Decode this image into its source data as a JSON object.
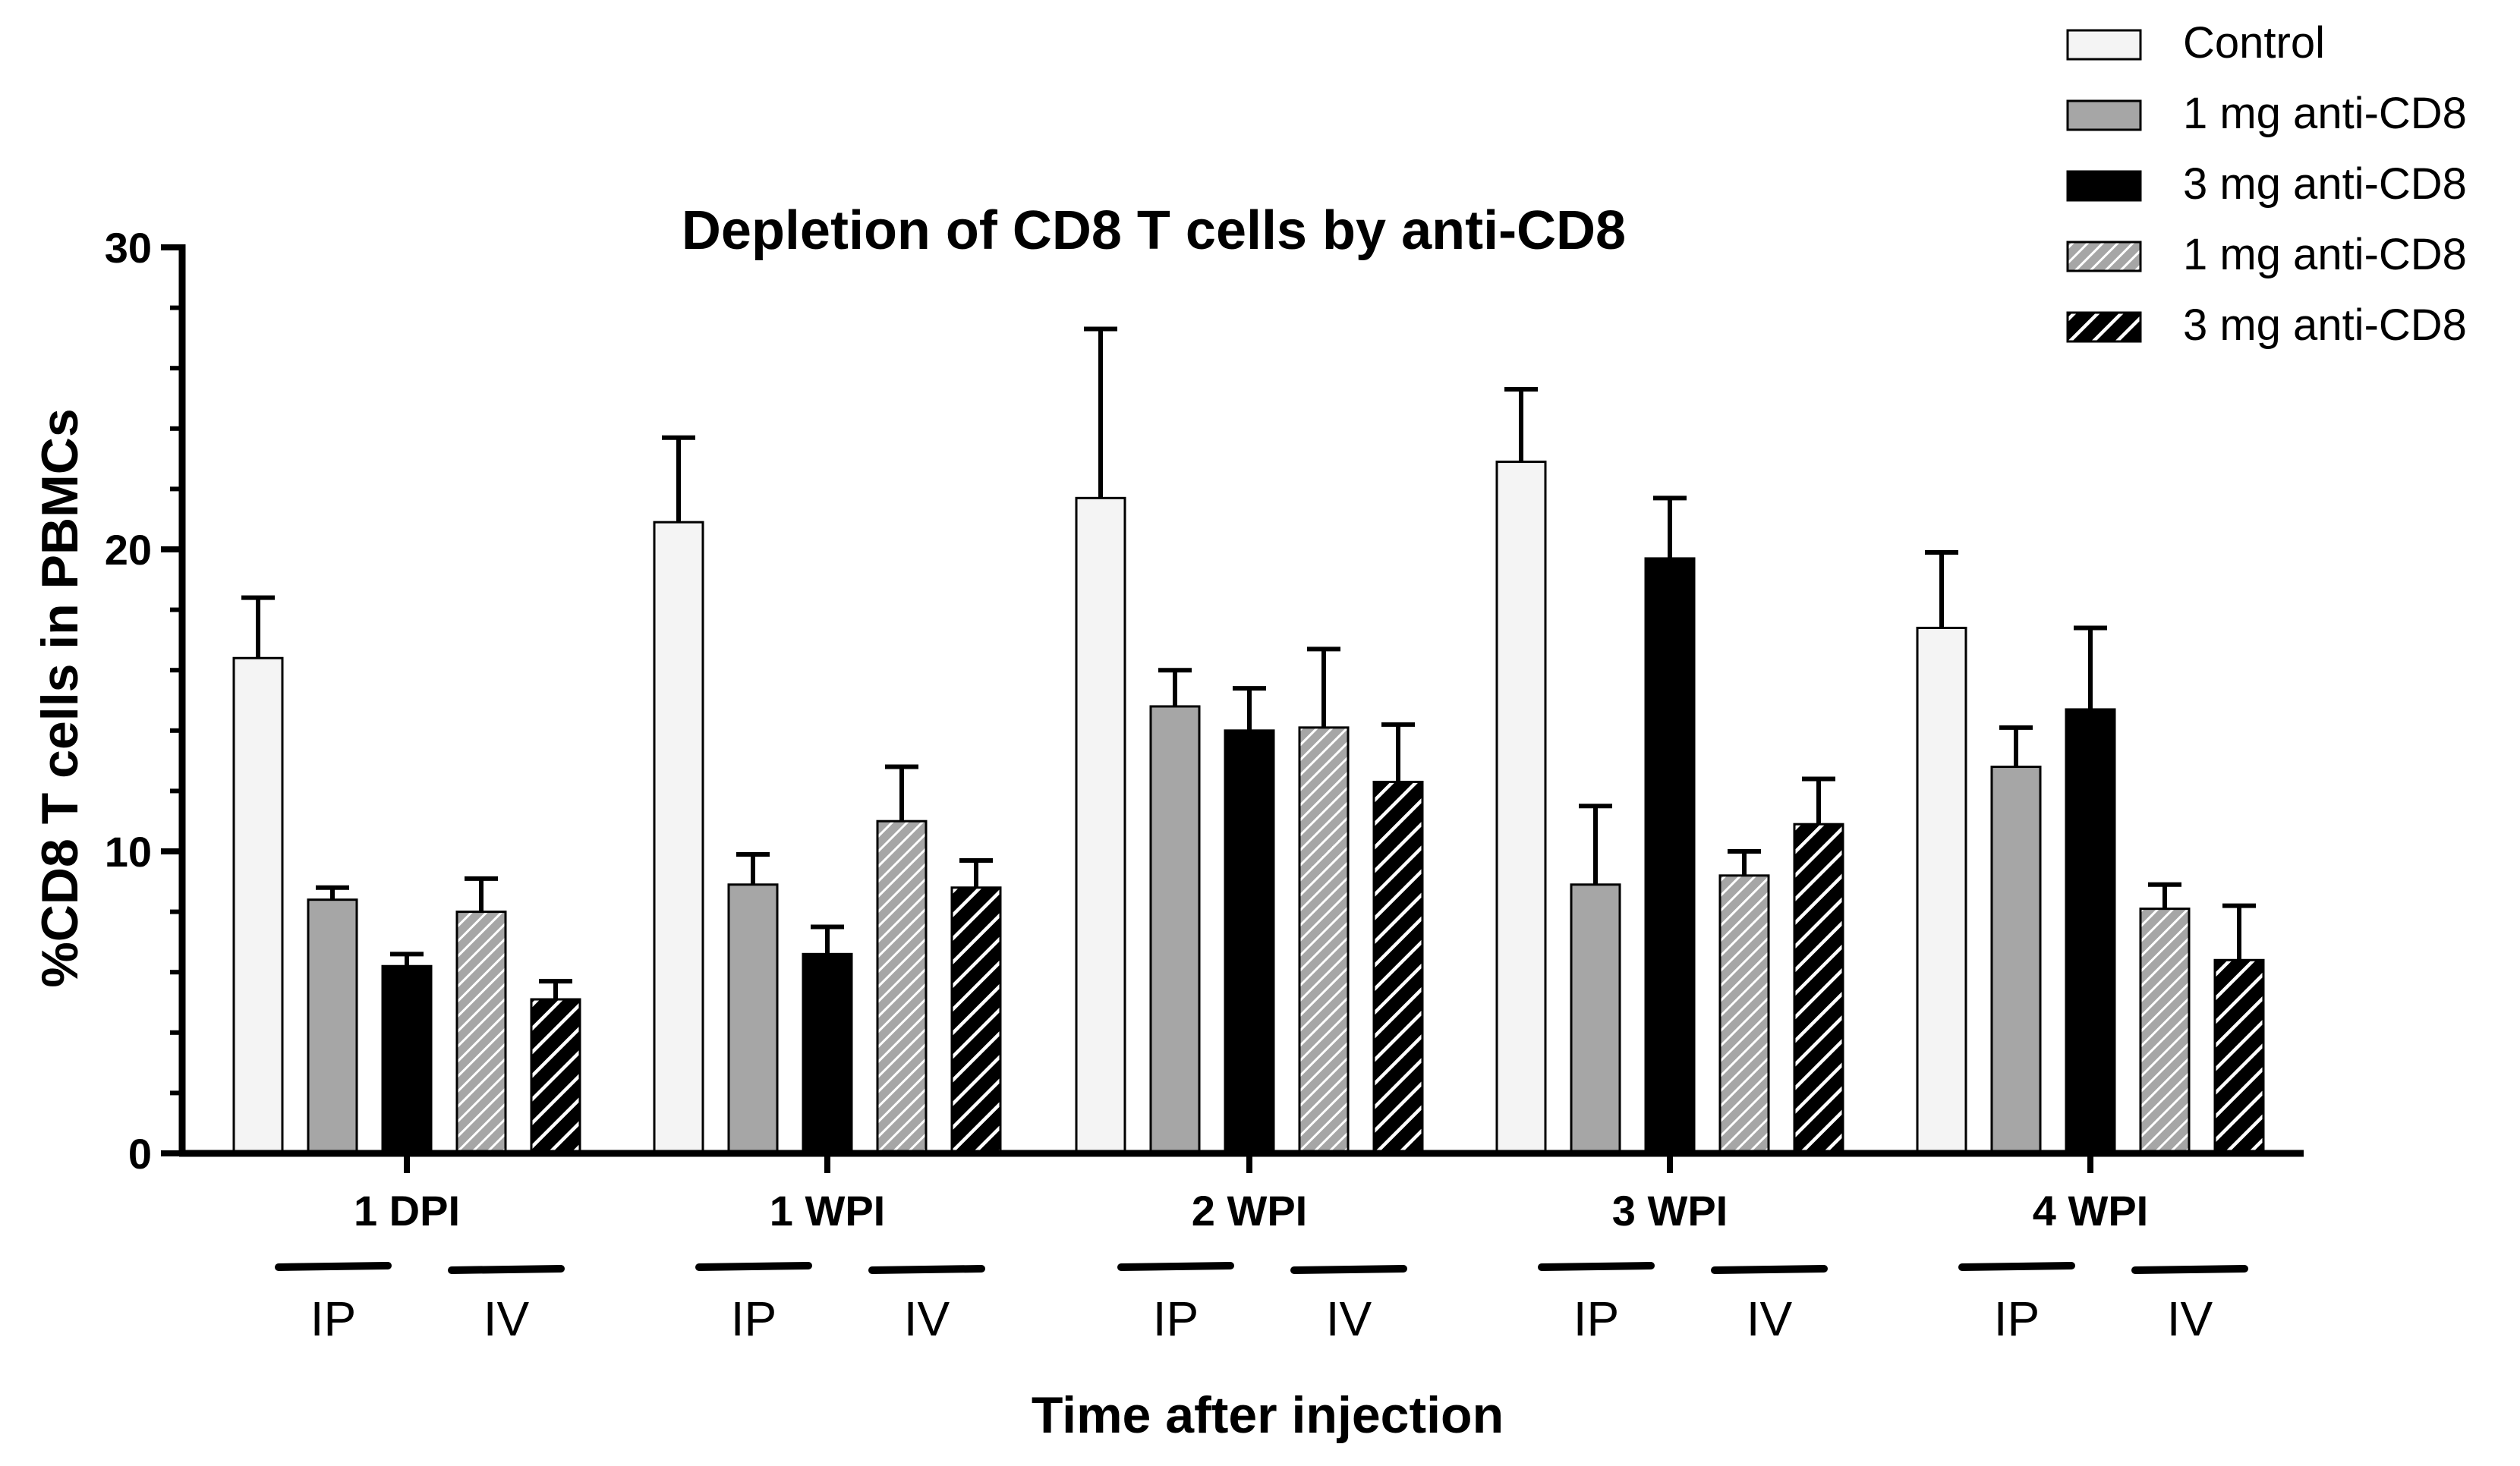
{
  "chart_data": {
    "type": "bar",
    "title": "Depletion of CD8 T cells by anti-CD8",
    "xlabel": "Time after injection",
    "ylabel": "%CD8 T cells in PBMCs",
    "ylim": [
      0,
      30
    ],
    "yticks": [
      0,
      10,
      20,
      30
    ],
    "grid": false,
    "legend_position": "top-right",
    "categories": [
      "1 DPI",
      "1 WPI",
      "2 WPI",
      "3 WPI",
      "4 WPI"
    ],
    "route_labels": [
      "IP",
      "IV"
    ],
    "series": [
      {
        "name": "Control",
        "fill": "#f4f4f4",
        "pattern": "solid",
        "values": [
          16.4,
          20.9,
          21.7,
          22.9,
          17.4
        ],
        "errors": [
          2.0,
          2.8,
          5.6,
          2.4,
          2.5
        ]
      },
      {
        "name": "1 mg anti-CD8",
        "fill": "#a6a6a6",
        "pattern": "solid",
        "values": [
          8.4,
          8.9,
          14.8,
          8.9,
          12.8
        ],
        "errors": [
          0.4,
          1.0,
          1.2,
          2.6,
          1.3
        ]
      },
      {
        "name": "3 mg anti-CD8",
        "fill": "#000000",
        "pattern": "solid",
        "values": [
          6.2,
          6.6,
          14.0,
          19.7,
          14.7
        ],
        "errors": [
          0.4,
          0.9,
          1.4,
          2.0,
          2.7
        ]
      },
      {
        "name": "1 mg anti-CD8",
        "fill": "#a6a6a6",
        "pattern": "hatch-light",
        "values": [
          8.0,
          11.0,
          14.1,
          9.2,
          8.1
        ],
        "errors": [
          1.1,
          1.8,
          2.6,
          0.8,
          0.8
        ]
      },
      {
        "name": "3 mg anti-CD8",
        "fill": "#000000",
        "pattern": "hatch-dark",
        "values": [
          5.1,
          8.8,
          12.3,
          10.9,
          6.4
        ],
        "errors": [
          0.6,
          0.9,
          1.9,
          1.5,
          1.8
        ]
      }
    ]
  }
}
